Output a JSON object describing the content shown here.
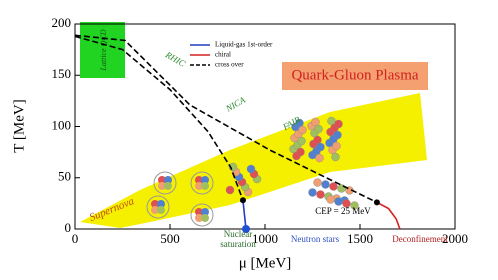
{
  "chart_data": {
    "type": "line",
    "x_label": "μ [MeV]",
    "y_label": "T [MeV]",
    "xlim": [
      0,
      2000
    ],
    "ylim": [
      0,
      200
    ],
    "xticks": [
      0,
      500,
      1000,
      1500,
      2000
    ],
    "yticks": [
      0,
      50,
      100,
      150,
      200
    ],
    "series": [
      {
        "name": "Liquid-gas 1st-order",
        "color": "#1f3fbf",
        "style": "solid",
        "x": [
          884,
          893,
          900
        ],
        "values": [
          28,
          12,
          0
        ]
      },
      {
        "name": "chiral",
        "color": "#d62020",
        "style": "solid",
        "x": [
          1589,
          1650,
          1690,
          1710
        ],
        "values": [
          26,
          20,
          10,
          0
        ]
      },
      {
        "name": "cross over",
        "color": "#000000",
        "style": "dashed",
        "x": [
          0,
          263,
          605,
          1026,
          1300,
          1589,
          null,
          0,
          250,
          500,
          700,
          820,
          884
        ],
        "values": [
          189,
          184,
          121,
          77,
          52,
          26,
          null,
          188,
          175,
          136,
          95,
          60,
          28
        ]
      }
    ],
    "annotations": [
      "Quark-Gluon Plasma",
      "Lattice QCD",
      "RHIC",
      "NICA",
      "FAIR",
      "Supernova",
      "CEP = 25 MeV",
      "Nuclear saturation",
      "Neutron stars",
      "Deconfinement"
    ]
  }
}
